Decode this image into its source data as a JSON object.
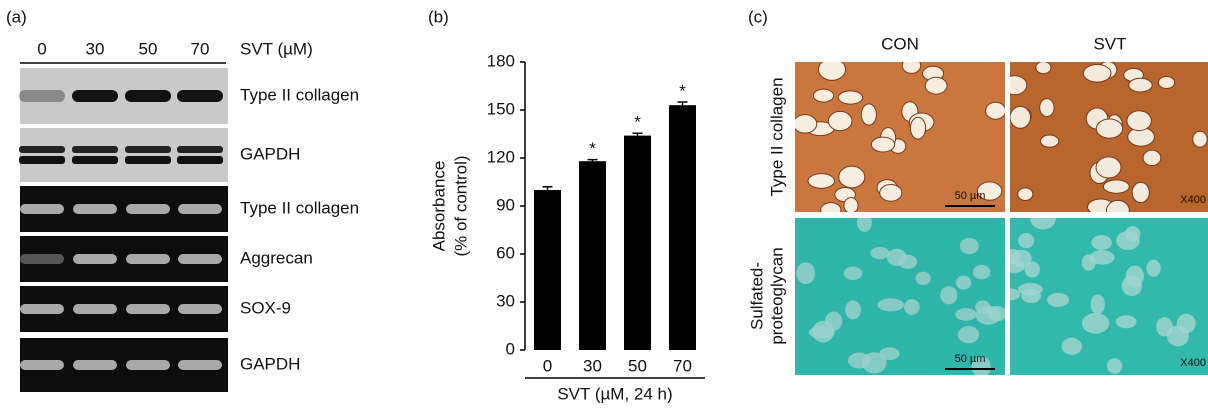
{
  "panel_a": {
    "label": "(a)",
    "lanes": [
      "0",
      "30",
      "50",
      "70"
    ],
    "treatment": "SVT (µM)",
    "rows": [
      "Type II collagen",
      "GAPDH",
      "Type II collagen",
      "Aggrecan",
      "SOX-9",
      "GAPDH"
    ]
  },
  "chart_data": {
    "type": "bar",
    "panel_label": "(b)",
    "ylabel": [
      "Absorbance",
      "(% of control)"
    ],
    "xlabel": "SVT (µM, 24 h)",
    "categories": [
      "0",
      "30",
      "50",
      "70"
    ],
    "values": [
      100,
      118,
      134,
      153
    ],
    "errors": [
      2,
      1,
      1.5,
      2
    ],
    "significance": [
      null,
      "*",
      "*",
      "*"
    ],
    "color": "#000000",
    "ylim": [
      0,
      180
    ],
    "yticks": [
      0,
      30,
      60,
      90,
      120,
      150,
      180
    ]
  },
  "panel_c": {
    "label": "(c)",
    "columns": [
      "CON",
      "SVT"
    ],
    "rows": [
      [
        "Type II collagen"
      ],
      [
        "Sulfated-",
        "proteoglycan"
      ]
    ],
    "scale_bar": "50 µm",
    "magnification": "X400"
  }
}
